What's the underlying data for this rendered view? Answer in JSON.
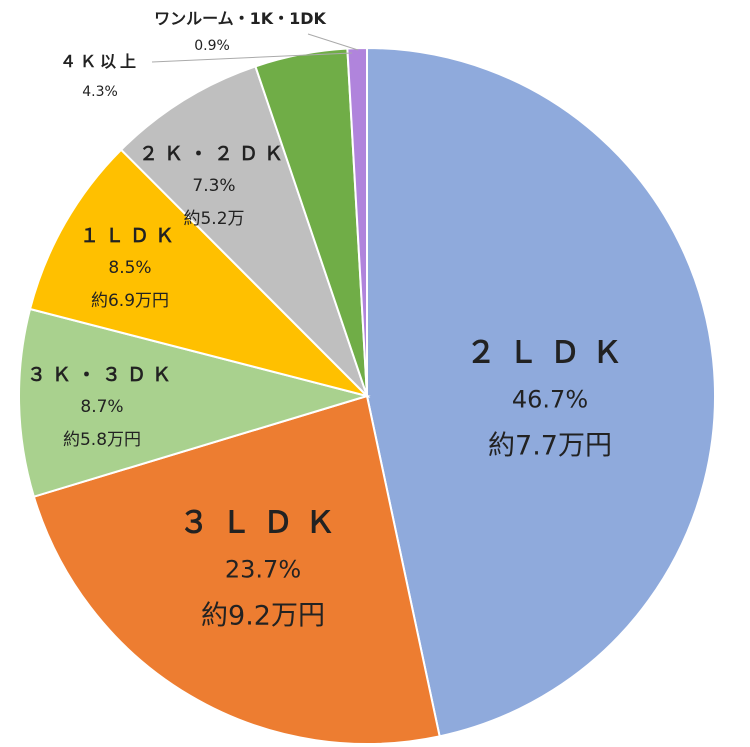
{
  "chart_data": {
    "type": "pie",
    "title": "",
    "start_angle": "top",
    "direction": "clockwise",
    "slices": [
      {
        "label": "２ＬＤＫ",
        "value": 46.7,
        "pct_label": "46.7%",
        "rent_label": "約7.7万円",
        "color": "#8FAADC"
      },
      {
        "label": "３ＬＤＫ",
        "value": 23.7,
        "pct_label": "23.7%",
        "rent_label": "約9.2万円",
        "color": "#ED7D31"
      },
      {
        "label": "３Ｋ・３ＤＫ",
        "value": 8.7,
        "pct_label": "8.7%",
        "rent_label": "約5.8万円",
        "color": "#A9D18E"
      },
      {
        "label": "１ＬＤＫ",
        "value": 8.5,
        "pct_label": "8.5%",
        "rent_label": "約6.9万円",
        "color": "#FFC000"
      },
      {
        "label": "２Ｋ・２ＤＫ",
        "value": 7.3,
        "pct_label": "7.3%",
        "rent_label": "約5.2万",
        "color": "#BFBFBF"
      },
      {
        "label": "４Ｋ以上",
        "value": 4.3,
        "pct_label": "4.3%",
        "color": "#70AD47"
      },
      {
        "label": "ワンルーム・1K・1DK",
        "value": 0.9,
        "pct_label": "0.9%",
        "color": "#B084DC"
      }
    ]
  }
}
